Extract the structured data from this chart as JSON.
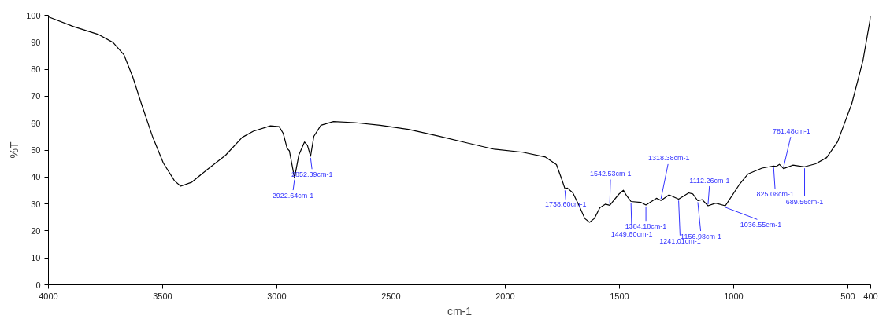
{
  "chart_data": {
    "type": "line",
    "xlabel": "cm-1",
    "ylabel": "%T",
    "xlim": [
      4000,
      400
    ],
    "ylim": [
      0,
      100
    ],
    "xticks": [
      4000,
      3500,
      3000,
      2500,
      2000,
      1500,
      1000,
      500,
      400
    ],
    "yticks": [
      0,
      10,
      20,
      30,
      40,
      50,
      60,
      70,
      80,
      90,
      100
    ],
    "grid": false,
    "series": [
      {
        "color": "#000000",
        "x": [
          4000,
          3890,
          3779,
          3717,
          3669,
          3631,
          3593,
          3545,
          3497,
          3448,
          3421,
          3372,
          3300,
          3224,
          3152,
          3103,
          3028,
          2990,
          2972,
          2955,
          2945,
          2922.64,
          2904,
          2879,
          2866,
          2852.39,
          2838,
          2807,
          2752,
          2659,
          2548,
          2424,
          2293,
          2169,
          2048,
          1924,
          1824,
          1776,
          1752,
          1738.6,
          1728,
          1704,
          1676,
          1652,
          1631,
          1610,
          1586,
          1562,
          1542.53,
          1503,
          1483,
          1469,
          1449.6,
          1407,
          1384.18,
          1338,
          1318.38,
          1283,
          1241.01,
          1197,
          1179,
          1156.98,
          1138,
          1112.26,
          1079,
          1036.55,
          976,
          938,
          876,
          825.08,
          814,
          800,
          781.48,
          741,
          689.56,
          641,
          593,
          545,
          483,
          434,
          400
        ],
        "values": [
          99.4,
          95.8,
          92.8,
          89.9,
          85.3,
          77.2,
          67.2,
          55.2,
          45.2,
          38.6,
          36.6,
          38.1,
          43.1,
          48.1,
          54.7,
          57,
          59,
          58.7,
          56.2,
          50.6,
          49.7,
          39.6,
          48.1,
          53,
          51.7,
          47.7,
          55.1,
          59.2,
          60.6,
          60.2,
          59.2,
          57.7,
          55.2,
          52.7,
          50.3,
          49.2,
          47.4,
          44.6,
          39,
          35.6,
          35.9,
          34.1,
          29.2,
          24.6,
          23.2,
          24.6,
          28.6,
          29.9,
          29.5,
          33.6,
          35.1,
          33.1,
          30.9,
          30.6,
          29.6,
          32.1,
          31.3,
          33.4,
          31.8,
          34.1,
          33.7,
          31.2,
          31.6,
          29.3,
          30.3,
          29.3,
          37.1,
          41.1,
          43.3,
          44.1,
          43.9,
          44.7,
          43.1,
          44.4,
          43.8,
          44.9,
          47.2,
          53.1,
          67.2,
          83.3,
          99.7
        ]
      }
    ],
    "annotations": [
      {
        "text": "2922.64cm-1",
        "x": 2922.64,
        "y": 39.6
      },
      {
        "text": "2852.39cm-1",
        "x": 2852.39,
        "y": 47.7
      },
      {
        "text": "1738.60cm-1",
        "x": 1738.6,
        "y": 35.6
      },
      {
        "text": "1542.53cm-1",
        "x": 1542.53,
        "y": 29.5
      },
      {
        "text": "1449.60cm-1",
        "x": 1449.6,
        "y": 30.9
      },
      {
        "text": "1384.18cm-1",
        "x": 1384.18,
        "y": 29.6
      },
      {
        "text": "1318.38cm-1",
        "x": 1318.38,
        "y": 31.3
      },
      {
        "text": "1241.01cm-1",
        "x": 1241.01,
        "y": 31.8
      },
      {
        "text": "1156.98cm-1",
        "x": 1156.98,
        "y": 31.2
      },
      {
        "text": "1112.26cm-1",
        "x": 1112.26,
        "y": 29.3
      },
      {
        "text": "1036.55cm-1",
        "x": 1036.55,
        "y": 29.3
      },
      {
        "text": "825.08cm-1",
        "x": 825.08,
        "y": 44.1
      },
      {
        "text": "781.48cm-1",
        "x": 781.48,
        "y": 43.1
      },
      {
        "text": "689.56cm-1",
        "x": 689.56,
        "y": 43.8
      }
    ]
  }
}
